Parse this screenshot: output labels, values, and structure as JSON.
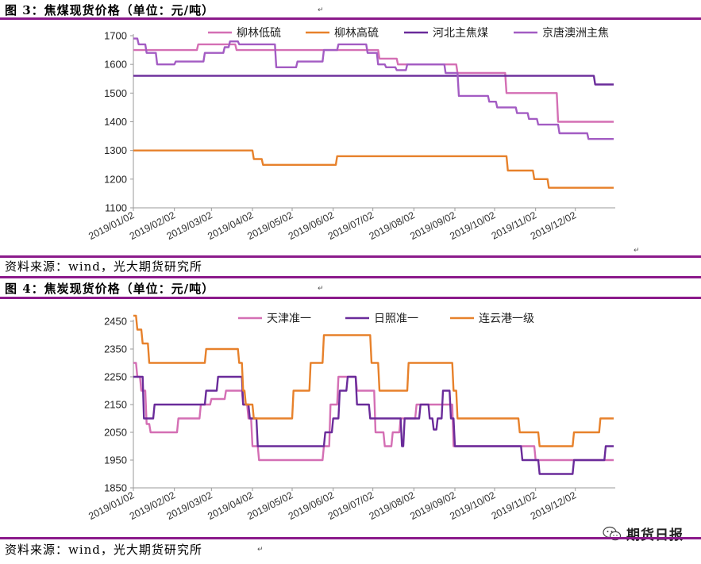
{
  "chart_1": {
    "title": "图 3：焦煤现货价格（单位：元/吨）",
    "source": "资料来源：wind，光大期货研究所",
    "chart_data": {
      "type": "line",
      "ylim": [
        1100,
        1700
      ],
      "yticks": [
        1100,
        1200,
        1300,
        1400,
        1500,
        1600,
        1700
      ],
      "xlim": [
        "2019-01-02",
        "2019-12-31"
      ],
      "xticks": [
        "2019/01/02",
        "2019/02/02",
        "2019/03/02",
        "2019/04/02",
        "2019/05/02",
        "2019/06/02",
        "2019/07/02",
        "2019/08/02",
        "2019/09/02",
        "2019/10/02",
        "2019/11/02",
        "2019/12/02"
      ],
      "grid": false,
      "legend": "top",
      "series": [
        {
          "name": "柳林低硫",
          "color": "#d46fb4",
          "points": [
            [
              "2019-01-02",
              1650
            ],
            [
              "2019-02-19",
              1650
            ],
            [
              "2019-02-20",
              1670
            ],
            [
              "2019-03-20",
              1670
            ],
            [
              "2019-03-21",
              1650
            ],
            [
              "2019-07-06",
              1650
            ],
            [
              "2019-07-07",
              1620
            ],
            [
              "2019-07-20",
              1620
            ],
            [
              "2019-07-21",
              1600
            ],
            [
              "2019-09-03",
              1600
            ],
            [
              "2019-09-04",
              1570
            ],
            [
              "2019-10-10",
              1570
            ],
            [
              "2019-10-11",
              1500
            ],
            [
              "2019-11-18",
              1500
            ],
            [
              "2019-11-19",
              1400
            ],
            [
              "2019-12-31",
              1400
            ]
          ]
        },
        {
          "name": "柳林高硫",
          "color": "#e7812b",
          "points": [
            [
              "2019-01-02",
              1300
            ],
            [
              "2019-04-02",
              1300
            ],
            [
              "2019-04-03",
              1270
            ],
            [
              "2019-04-09",
              1270
            ],
            [
              "2019-04-10",
              1250
            ],
            [
              "2019-06-04",
              1250
            ],
            [
              "2019-06-05",
              1280
            ],
            [
              "2019-10-11",
              1280
            ],
            [
              "2019-10-12",
              1230
            ],
            [
              "2019-10-31",
              1230
            ],
            [
              "2019-11-01",
              1200
            ],
            [
              "2019-11-11",
              1200
            ],
            [
              "2019-11-12",
              1170
            ],
            [
              "2019-12-31",
              1170
            ]
          ]
        },
        {
          "name": "河北主焦煤",
          "color": "#6a2b9a",
          "points": [
            [
              "2019-01-02",
              1560
            ],
            [
              "2019-12-16",
              1560
            ],
            [
              "2019-12-17",
              1530
            ],
            [
              "2019-12-31",
              1530
            ]
          ]
        },
        {
          "name": "京唐澳洲主焦",
          "color": "#a35cc3",
          "points": [
            [
              "2019-01-02",
              1690
            ],
            [
              "2019-01-05",
              1690
            ],
            [
              "2019-01-06",
              1670
            ],
            [
              "2019-01-11",
              1670
            ],
            [
              "2019-01-12",
              1640
            ],
            [
              "2019-01-19",
              1640
            ],
            [
              "2019-01-20",
              1600
            ],
            [
              "2019-02-02",
              1600
            ],
            [
              "2019-02-03",
              1610
            ],
            [
              "2019-02-24",
              1610
            ],
            [
              "2019-02-25",
              1640
            ],
            [
              "2019-03-11",
              1640
            ],
            [
              "2019-03-12",
              1660
            ],
            [
              "2019-03-15",
              1660
            ],
            [
              "2019-03-16",
              1680
            ],
            [
              "2019-03-22",
              1680
            ],
            [
              "2019-03-23",
              1670
            ],
            [
              "2019-04-19",
              1670
            ],
            [
              "2019-04-20",
              1590
            ],
            [
              "2019-05-05",
              1590
            ],
            [
              "2019-05-06",
              1610
            ],
            [
              "2019-05-25",
              1610
            ],
            [
              "2019-05-26",
              1650
            ],
            [
              "2019-06-05",
              1650
            ],
            [
              "2019-06-06",
              1670
            ],
            [
              "2019-06-27",
              1670
            ],
            [
              "2019-06-28",
              1640
            ],
            [
              "2019-07-05",
              1640
            ],
            [
              "2019-07-06",
              1600
            ],
            [
              "2019-07-11",
              1600
            ],
            [
              "2019-07-12",
              1590
            ],
            [
              "2019-07-19",
              1590
            ],
            [
              "2019-07-20",
              1580
            ],
            [
              "2019-07-27",
              1580
            ],
            [
              "2019-07-28",
              1600
            ],
            [
              "2019-08-25",
              1600
            ],
            [
              "2019-08-26",
              1570
            ],
            [
              "2019-09-04",
              1570
            ],
            [
              "2019-09-05",
              1490
            ],
            [
              "2019-09-27",
              1490
            ],
            [
              "2019-09-28",
              1470
            ],
            [
              "2019-10-03",
              1470
            ],
            [
              "2019-10-04",
              1450
            ],
            [
              "2019-10-18",
              1450
            ],
            [
              "2019-10-19",
              1430
            ],
            [
              "2019-10-27",
              1430
            ],
            [
              "2019-10-28",
              1410
            ],
            [
              "2019-11-03",
              1410
            ],
            [
              "2019-11-04",
              1390
            ],
            [
              "2019-11-19",
              1390
            ],
            [
              "2019-11-20",
              1360
            ],
            [
              "2019-12-11",
              1360
            ],
            [
              "2019-12-12",
              1340
            ],
            [
              "2019-12-31",
              1340
            ]
          ]
        }
      ]
    }
  },
  "chart_2": {
    "title": "图 4：焦炭现货价格（单位：元/吨）",
    "source": "资料来源：wind，光大期货研究所",
    "chart_data": {
      "type": "line",
      "ylim": [
        1850,
        2450
      ],
      "yticks": [
        1850,
        1950,
        2050,
        2150,
        2250,
        2350,
        2450
      ],
      "xlim": [
        "2019-01-02",
        "2019-12-31"
      ],
      "xticks": [
        "2019/01/02",
        "2019/02/02",
        "2019/03/02",
        "2019/04/02",
        "2019/05/02",
        "2019/06/02",
        "2019/07/02",
        "2019/08/02",
        "2019/09/02",
        "2019/10/02",
        "2019/11/02",
        "2019/12/02"
      ],
      "grid": false,
      "legend": "top",
      "series": [
        {
          "name": "天津准一",
          "color": "#d46fb4",
          "points": [
            [
              "2019-01-02",
              2300
            ],
            [
              "2019-01-04",
              2300
            ],
            [
              "2019-01-05",
              2250
            ],
            [
              "2019-01-07",
              2250
            ],
            [
              "2019-01-08",
              2200
            ],
            [
              "2019-01-11",
              2200
            ],
            [
              "2019-01-12",
              2080
            ],
            [
              "2019-01-14",
              2080
            ],
            [
              "2019-01-15",
              2050
            ],
            [
              "2019-02-04",
              2050
            ],
            [
              "2019-02-05",
              2100
            ],
            [
              "2019-02-21",
              2100
            ],
            [
              "2019-02-22",
              2150
            ],
            [
              "2019-03-01",
              2150
            ],
            [
              "2019-03-02",
              2170
            ],
            [
              "2019-03-12",
              2170
            ],
            [
              "2019-03-13",
              2200
            ],
            [
              "2019-03-25",
              2200
            ],
            [
              "2019-03-26",
              2150
            ],
            [
              "2019-03-29",
              2150
            ],
            [
              "2019-03-30",
              2100
            ],
            [
              "2019-04-01",
              2100
            ],
            [
              "2019-04-02",
              2000
            ],
            [
              "2019-04-06",
              2000
            ],
            [
              "2019-04-07",
              1950
            ],
            [
              "2019-05-25",
              1950
            ],
            [
              "2019-05-26",
              2000
            ],
            [
              "2019-05-30",
              2000
            ],
            [
              "2019-05-31",
              2150
            ],
            [
              "2019-06-05",
              2150
            ],
            [
              "2019-06-06",
              2250
            ],
            [
              "2019-06-19",
              2250
            ],
            [
              "2019-06-20",
              2200
            ],
            [
              "2019-07-03",
              2200
            ],
            [
              "2019-07-04",
              2050
            ],
            [
              "2019-07-10",
              2050
            ],
            [
              "2019-07-11",
              2000
            ],
            [
              "2019-07-16",
              2000
            ],
            [
              "2019-07-17",
              2050
            ],
            [
              "2019-07-22",
              2050
            ],
            [
              "2019-07-23",
              2100
            ],
            [
              "2019-08-03",
              2100
            ],
            [
              "2019-08-04",
              2150
            ],
            [
              "2019-08-31",
              2150
            ],
            [
              "2019-09-01",
              2000
            ],
            [
              "2019-11-01",
              2000
            ],
            [
              "2019-11-02",
              1950
            ],
            [
              "2019-12-31",
              1950
            ]
          ]
        },
        {
          "name": "日照准一",
          "color": "#6a2b9a",
          "points": [
            [
              "2019-01-02",
              2250
            ],
            [
              "2019-01-09",
              2250
            ],
            [
              "2019-01-10",
              2100
            ],
            [
              "2019-01-17",
              2100
            ],
            [
              "2019-01-18",
              2150
            ],
            [
              "2019-02-25",
              2150
            ],
            [
              "2019-02-26",
              2200
            ],
            [
              "2019-03-06",
              2200
            ],
            [
              "2019-03-07",
              2250
            ],
            [
              "2019-03-25",
              2250
            ],
            [
              "2019-03-26",
              2150
            ],
            [
              "2019-03-30",
              2150
            ],
            [
              "2019-03-31",
              2100
            ],
            [
              "2019-04-05",
              2100
            ],
            [
              "2019-04-06",
              2000
            ],
            [
              "2019-05-26",
              2000
            ],
            [
              "2019-05-27",
              2050
            ],
            [
              "2019-06-01",
              2050
            ],
            [
              "2019-06-02",
              2100
            ],
            [
              "2019-06-06",
              2100
            ],
            [
              "2019-06-07",
              2200
            ],
            [
              "2019-06-12",
              2200
            ],
            [
              "2019-06-13",
              2250
            ],
            [
              "2019-06-19",
              2250
            ],
            [
              "2019-06-20",
              2150
            ],
            [
              "2019-06-29",
              2150
            ],
            [
              "2019-06-30",
              2100
            ],
            [
              "2019-07-23",
              2100
            ],
            [
              "2019-07-24",
              2000
            ],
            [
              "2019-07-25",
              2000
            ],
            [
              "2019-07-26",
              2100
            ],
            [
              "2019-08-06",
              2100
            ],
            [
              "2019-08-07",
              2150
            ],
            [
              "2019-08-13",
              2150
            ],
            [
              "2019-08-14",
              2100
            ],
            [
              "2019-08-16",
              2100
            ],
            [
              "2019-08-17",
              2060
            ],
            [
              "2019-08-19",
              2060
            ],
            [
              "2019-08-20",
              2100
            ],
            [
              "2019-08-23",
              2100
            ],
            [
              "2019-08-24",
              2200
            ],
            [
              "2019-08-29",
              2200
            ],
            [
              "2019-08-30",
              2100
            ],
            [
              "2019-09-01",
              2100
            ],
            [
              "2019-09-02",
              2000
            ],
            [
              "2019-10-22",
              2000
            ],
            [
              "2019-10-23",
              1950
            ],
            [
              "2019-11-04",
              1950
            ],
            [
              "2019-11-05",
              1900
            ],
            [
              "2019-11-30",
              1900
            ],
            [
              "2019-12-01",
              1950
            ],
            [
              "2019-12-24",
              1950
            ],
            [
              "2019-12-25",
              2000
            ],
            [
              "2019-12-31",
              2000
            ]
          ]
        },
        {
          "name": "连云港一级",
          "color": "#e7812b",
          "points": [
            [
              "2019-01-02",
              2470
            ],
            [
              "2019-01-04",
              2470
            ],
            [
              "2019-01-05",
              2420
            ],
            [
              "2019-01-08",
              2420
            ],
            [
              "2019-01-09",
              2370
            ],
            [
              "2019-01-13",
              2370
            ],
            [
              "2019-01-14",
              2300
            ],
            [
              "2019-02-25",
              2300
            ],
            [
              "2019-02-26",
              2350
            ],
            [
              "2019-03-22",
              2350
            ],
            [
              "2019-03-23",
              2300
            ],
            [
              "2019-03-25",
              2300
            ],
            [
              "2019-03-26",
              2200
            ],
            [
              "2019-03-27",
              2200
            ],
            [
              "2019-03-28",
              2150
            ],
            [
              "2019-04-02",
              2150
            ],
            [
              "2019-04-03",
              2100
            ],
            [
              "2019-05-02",
              2100
            ],
            [
              "2019-05-03",
              2200
            ],
            [
              "2019-05-15",
              2200
            ],
            [
              "2019-05-16",
              2300
            ],
            [
              "2019-05-25",
              2300
            ],
            [
              "2019-05-26",
              2400
            ],
            [
              "2019-06-30",
              2400
            ],
            [
              "2019-07-01",
              2300
            ],
            [
              "2019-07-06",
              2300
            ],
            [
              "2019-07-07",
              2200
            ],
            [
              "2019-07-28",
              2200
            ],
            [
              "2019-07-29",
              2300
            ],
            [
              "2019-08-31",
              2300
            ],
            [
              "2019-09-01",
              2200
            ],
            [
              "2019-09-03",
              2200
            ],
            [
              "2019-09-04",
              2100
            ],
            [
              "2019-10-20",
              2100
            ],
            [
              "2019-10-21",
              2050
            ],
            [
              "2019-11-04",
              2050
            ],
            [
              "2019-11-05",
              2000
            ],
            [
              "2019-11-30",
              2000
            ],
            [
              "2019-12-01",
              2050
            ],
            [
              "2019-12-20",
              2050
            ],
            [
              "2019-12-21",
              2100
            ],
            [
              "2019-12-31",
              2100
            ]
          ]
        }
      ]
    }
  },
  "watermark": {
    "text": "期货日报",
    "icon": "wechat-icon"
  },
  "marks": {
    "return_mark": "↵"
  }
}
